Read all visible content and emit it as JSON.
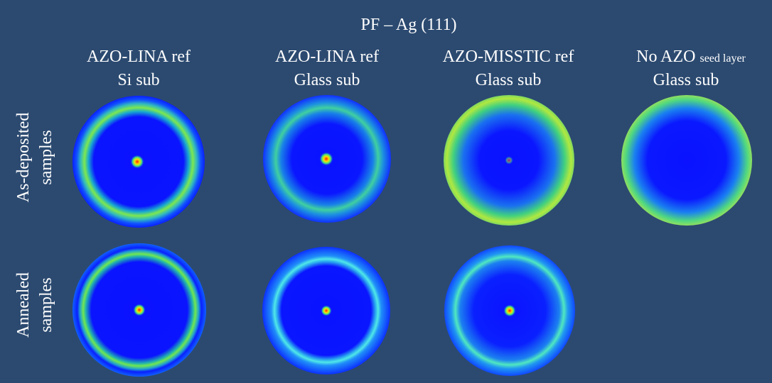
{
  "title": "PF – Ag (111)",
  "columns": [
    {
      "line1": "AZO-LINA ref",
      "line2": "Si sub"
    },
    {
      "line1": "AZO-LINA ref",
      "line2": "Glass sub"
    },
    {
      "line1": "AZO-MISSTIC ref",
      "line2": "Glass sub"
    },
    {
      "line1": "No AZO",
      "line1_small": "seed layer",
      "line2": "Glass sub"
    }
  ],
  "rows": [
    {
      "line1": "As-deposited",
      "line2": "samples"
    },
    {
      "line1": "Annealed",
      "line2": "samples"
    }
  ]
}
